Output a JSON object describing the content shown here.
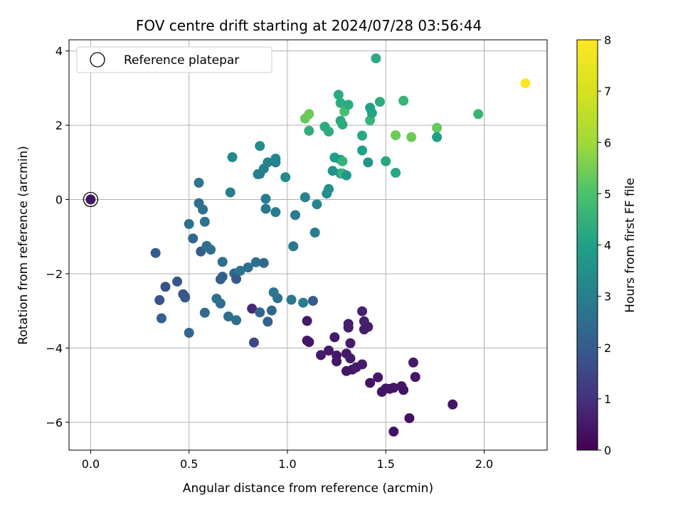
{
  "chart_data": {
    "type": "scatter",
    "title": "FOV centre drift starting at 2024/07/28 03:56:44",
    "xlabel": "Angular distance from reference (arcmin)",
    "ylabel": "Rotation from reference (arcmin)",
    "xlim": [
      -0.11,
      2.32
    ],
    "ylim": [
      -6.75,
      4.3
    ],
    "xticks": [
      0.0,
      0.5,
      1.0,
      1.5,
      2.0
    ],
    "xtick_labels": [
      "0.0",
      "0.5",
      "1.0",
      "1.5",
      "2.0"
    ],
    "yticks": [
      -6,
      -4,
      -2,
      0,
      2,
      4
    ],
    "ytick_labels": [
      "−6",
      "−4",
      "−2",
      "0",
      "2",
      "4"
    ],
    "grid": true,
    "legend": {
      "position": "top-left",
      "label": "Reference platepar",
      "marker": "open-circle"
    },
    "colorbar": {
      "label": "Hours from first FF file",
      "range": [
        0,
        8
      ],
      "ticks": [
        0,
        1,
        2,
        3,
        4,
        5,
        6,
        7,
        8
      ],
      "tick_labels": [
        "0",
        "1",
        "2",
        "3",
        "4",
        "5",
        "6",
        "7",
        "8"
      ],
      "colormap": "viridis"
    },
    "reference_point": {
      "x": 0.0,
      "y": 0.0
    },
    "points": [
      {
        "x": 0.0,
        "y": 0.0,
        "t": 0.4
      },
      {
        "x": 1.1,
        "y": -3.8,
        "t": 0.45
      },
      {
        "x": 1.11,
        "y": -3.84,
        "t": 0.45
      },
      {
        "x": 1.1,
        "y": -3.27,
        "t": 0.5
      },
      {
        "x": 1.17,
        "y": -4.19,
        "t": 0.5
      },
      {
        "x": 1.21,
        "y": -4.07,
        "t": 0.5
      },
      {
        "x": 1.24,
        "y": -3.71,
        "t": 0.5
      },
      {
        "x": 1.25,
        "y": -4.36,
        "t": 0.45
      },
      {
        "x": 1.25,
        "y": -4.2,
        "t": 0.5
      },
      {
        "x": 1.3,
        "y": -4.15,
        "t": 0.5
      },
      {
        "x": 1.3,
        "y": -4.62,
        "t": 0.45
      },
      {
        "x": 1.32,
        "y": -4.28,
        "t": 0.5
      },
      {
        "x": 1.33,
        "y": -4.58,
        "t": 0.45
      },
      {
        "x": 1.35,
        "y": -4.52,
        "t": 0.5
      },
      {
        "x": 1.32,
        "y": -3.87,
        "t": 0.55
      },
      {
        "x": 1.31,
        "y": -3.45,
        "t": 0.6
      },
      {
        "x": 1.31,
        "y": -3.35,
        "t": 0.6
      },
      {
        "x": 1.38,
        "y": -4.44,
        "t": 0.55
      },
      {
        "x": 1.38,
        "y": -3.01,
        "t": 0.65
      },
      {
        "x": 1.39,
        "y": -3.5,
        "t": 0.6
      },
      {
        "x": 1.39,
        "y": -3.28,
        "t": 0.65
      },
      {
        "x": 1.41,
        "y": -3.43,
        "t": 0.6
      },
      {
        "x": 1.42,
        "y": -4.94,
        "t": 0.4
      },
      {
        "x": 1.46,
        "y": -4.79,
        "t": 0.45
      },
      {
        "x": 1.48,
        "y": -5.18,
        "t": 0.4
      },
      {
        "x": 1.5,
        "y": -5.09,
        "t": 0.4
      },
      {
        "x": 1.52,
        "y": -5.1,
        "t": 0.4
      },
      {
        "x": 1.54,
        "y": -5.07,
        "t": 0.4
      },
      {
        "x": 1.54,
        "y": -6.25,
        "t": 0.35
      },
      {
        "x": 1.58,
        "y": -5.03,
        "t": 0.4
      },
      {
        "x": 1.59,
        "y": -5.13,
        "t": 0.4
      },
      {
        "x": 1.62,
        "y": -5.89,
        "t": 0.35
      },
      {
        "x": 1.64,
        "y": -4.39,
        "t": 0.5
      },
      {
        "x": 1.65,
        "y": -4.78,
        "t": 0.45
      },
      {
        "x": 1.84,
        "y": -5.52,
        "t": 0.4
      },
      {
        "x": 0.82,
        "y": -2.94,
        "t": 0.8
      },
      {
        "x": 0.83,
        "y": -3.85,
        "t": 1.5
      },
      {
        "x": 0.33,
        "y": -1.44,
        "t": 2.0
      },
      {
        "x": 0.35,
        "y": -2.71,
        "t": 1.8
      },
      {
        "x": 0.36,
        "y": -3.2,
        "t": 2.1
      },
      {
        "x": 0.38,
        "y": -2.35,
        "t": 1.7
      },
      {
        "x": 0.44,
        "y": -2.21,
        "t": 1.8
      },
      {
        "x": 0.47,
        "y": -2.55,
        "t": 1.8
      },
      {
        "x": 0.48,
        "y": -2.64,
        "t": 1.8
      },
      {
        "x": 0.48,
        "y": -2.62,
        "t": 1.9
      },
      {
        "x": 0.5,
        "y": -3.59,
        "t": 2.3
      },
      {
        "x": 0.52,
        "y": -1.05,
        "t": 2.3
      },
      {
        "x": 0.55,
        "y": 0.45,
        "t": 2.7
      },
      {
        "x": 0.55,
        "y": -0.1,
        "t": 2.5
      },
      {
        "x": 0.56,
        "y": -1.4,
        "t": 2.0
      },
      {
        "x": 0.57,
        "y": -0.27,
        "t": 2.6
      },
      {
        "x": 0.58,
        "y": -0.6,
        "t": 2.6
      },
      {
        "x": 0.58,
        "y": -3.05,
        "t": 2.4
      },
      {
        "x": 0.59,
        "y": -1.25,
        "t": 2.6
      },
      {
        "x": 0.61,
        "y": -1.35,
        "t": 2.5
      },
      {
        "x": 0.5,
        "y": -0.66,
        "t": 2.6
      },
      {
        "x": 0.64,
        "y": -2.67,
        "t": 2.6
      },
      {
        "x": 0.66,
        "y": -2.8,
        "t": 2.5
      },
      {
        "x": 0.66,
        "y": -2.15,
        "t": 2.0
      },
      {
        "x": 0.67,
        "y": -2.08,
        "t": 2.1
      },
      {
        "x": 0.67,
        "y": -1.68,
        "t": 2.6
      },
      {
        "x": 0.7,
        "y": -3.15,
        "t": 2.6
      },
      {
        "x": 0.71,
        "y": 0.19,
        "t": 3.0
      },
      {
        "x": 0.72,
        "y": 1.14,
        "t": 3.3
      },
      {
        "x": 0.73,
        "y": -1.99,
        "t": 2.3
      },
      {
        "x": 0.74,
        "y": -2.14,
        "t": 1.9
      },
      {
        "x": 0.74,
        "y": -3.25,
        "t": 2.5
      },
      {
        "x": 0.76,
        "y": -1.92,
        "t": 2.7
      },
      {
        "x": 0.8,
        "y": -1.83,
        "t": 2.5
      },
      {
        "x": 0.84,
        "y": -1.69,
        "t": 2.5
      },
      {
        "x": 0.85,
        "y": 0.68,
        "t": 3.1
      },
      {
        "x": 0.86,
        "y": 0.69,
        "t": 3.0
      },
      {
        "x": 0.86,
        "y": 1.44,
        "t": 3.4
      },
      {
        "x": 0.86,
        "y": -3.04,
        "t": 2.3
      },
      {
        "x": 0.88,
        "y": -1.71,
        "t": 2.3
      },
      {
        "x": 0.88,
        "y": 0.83,
        "t": 3.1
      },
      {
        "x": 0.89,
        "y": 0.02,
        "t": 2.9
      },
      {
        "x": 0.89,
        "y": -0.25,
        "t": 2.8
      },
      {
        "x": 0.9,
        "y": 1.0,
        "t": 3.1
      },
      {
        "x": 0.9,
        "y": -3.29,
        "t": 2.2
      },
      {
        "x": 0.92,
        "y": -2.99,
        "t": 2.3
      },
      {
        "x": 0.93,
        "y": -2.5,
        "t": 2.7
      },
      {
        "x": 0.94,
        "y": 1.1,
        "t": 3.2
      },
      {
        "x": 0.94,
        "y": 1.0,
        "t": 3.1
      },
      {
        "x": 0.94,
        "y": -0.34,
        "t": 2.9
      },
      {
        "x": 0.95,
        "y": -2.66,
        "t": 2.6
      },
      {
        "x": 0.99,
        "y": 0.6,
        "t": 3.3
      },
      {
        "x": 1.02,
        "y": -2.7,
        "t": 2.8
      },
      {
        "x": 1.03,
        "y": -1.26,
        "t": 2.8
      },
      {
        "x": 1.04,
        "y": -0.42,
        "t": 2.9
      },
      {
        "x": 1.08,
        "y": -2.78,
        "t": 2.9
      },
      {
        "x": 1.09,
        "y": 0.06,
        "t": 3.1
      },
      {
        "x": 1.13,
        "y": -2.73,
        "t": 2.0
      },
      {
        "x": 1.14,
        "y": -0.89,
        "t": 3.0
      },
      {
        "x": 1.15,
        "y": -0.13,
        "t": 3.2
      },
      {
        "x": 1.2,
        "y": 0.16,
        "t": 3.5
      },
      {
        "x": 1.21,
        "y": 0.28,
        "t": 3.5
      },
      {
        "x": 1.23,
        "y": 0.77,
        "t": 3.6
      },
      {
        "x": 1.24,
        "y": 1.13,
        "t": 3.9
      },
      {
        "x": 1.27,
        "y": 0.7,
        "t": 3.8
      },
      {
        "x": 1.27,
        "y": 1.07,
        "t": 3.8
      },
      {
        "x": 1.28,
        "y": 0.7,
        "t": 4.6
      },
      {
        "x": 1.28,
        "y": 1.03,
        "t": 4.5
      },
      {
        "x": 1.3,
        "y": 0.65,
        "t": 3.7
      },
      {
        "x": 1.38,
        "y": 1.32,
        "t": 4.0
      },
      {
        "x": 1.38,
        "y": 1.72,
        "t": 4.2
      },
      {
        "x": 1.41,
        "y": 1.0,
        "t": 3.7
      },
      {
        "x": 1.42,
        "y": 2.13,
        "t": 4.6
      },
      {
        "x": 1.42,
        "y": 2.47,
        "t": 4.0
      },
      {
        "x": 1.43,
        "y": 2.33,
        "t": 4.1
      },
      {
        "x": 1.45,
        "y": 3.8,
        "t": 4.3
      },
      {
        "x": 1.47,
        "y": 2.63,
        "t": 4.3
      },
      {
        "x": 1.5,
        "y": 1.03,
        "t": 4.2
      },
      {
        "x": 1.55,
        "y": 0.72,
        "t": 4.2
      },
      {
        "x": 1.55,
        "y": 1.73,
        "t": 5.4
      },
      {
        "x": 1.59,
        "y": 2.66,
        "t": 4.6
      },
      {
        "x": 1.63,
        "y": 1.68,
        "t": 5.4
      },
      {
        "x": 1.76,
        "y": 1.93,
        "t": 5.3
      },
      {
        "x": 1.76,
        "y": 1.68,
        "t": 4.0
      },
      {
        "x": 1.97,
        "y": 2.3,
        "t": 4.6
      },
      {
        "x": 1.09,
        "y": 2.18,
        "t": 5.3
      },
      {
        "x": 1.11,
        "y": 2.3,
        "t": 5.4
      },
      {
        "x": 1.11,
        "y": 1.85,
        "t": 4.4
      },
      {
        "x": 1.19,
        "y": 1.96,
        "t": 4.3
      },
      {
        "x": 1.21,
        "y": 1.83,
        "t": 4.3
      },
      {
        "x": 1.26,
        "y": 2.82,
        "t": 4.3
      },
      {
        "x": 1.27,
        "y": 2.6,
        "t": 4.3
      },
      {
        "x": 1.27,
        "y": 2.12,
        "t": 4.2
      },
      {
        "x": 1.28,
        "y": 2.02,
        "t": 4.3
      },
      {
        "x": 1.29,
        "y": 2.37,
        "t": 4.9
      },
      {
        "x": 1.31,
        "y": 2.55,
        "t": 4.3
      },
      {
        "x": 2.21,
        "y": 3.13,
        "t": 8.0
      }
    ]
  }
}
